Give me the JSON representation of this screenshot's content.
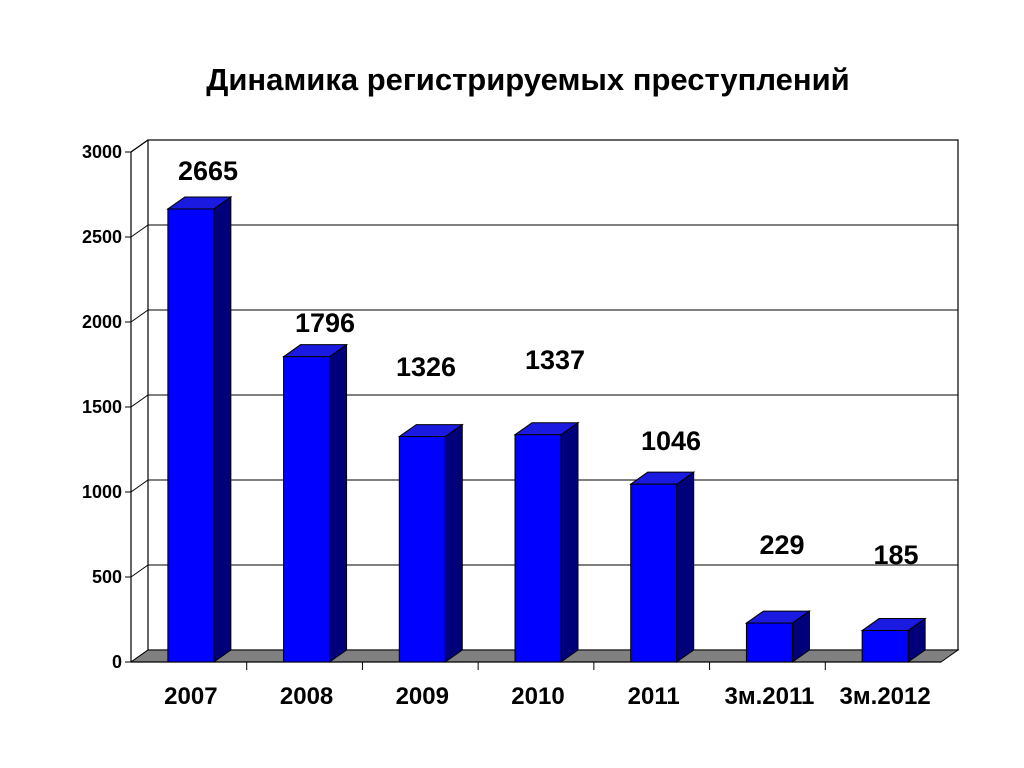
{
  "chart_data": {
    "type": "bar",
    "title": "Динамика регистрируемых преступлений",
    "xlabel": "",
    "ylabel": "",
    "categories": [
      "2007",
      "2008",
      "2009",
      "2010",
      "2011",
      "3м.2011",
      "3м.2012"
    ],
    "values": [
      2665,
      1796,
      1326,
      1337,
      1046,
      229,
      185
    ],
    "ylim": [
      0,
      3000
    ],
    "yticks": [
      0,
      500,
      1000,
      1500,
      2000,
      2500,
      3000
    ],
    "grid": true,
    "legend": "none",
    "bar_color": "#0000FF",
    "bar_side_color": "#00007A",
    "bar_top_color": "#1A1AE0",
    "floor_color": "#808080"
  }
}
